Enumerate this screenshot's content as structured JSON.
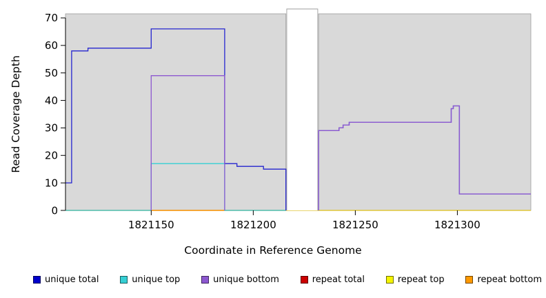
{
  "axes": {
    "ylabel": "Read Coverage Depth",
    "xlabel": "Coordinate in Reference Genome"
  },
  "chart_data": {
    "type": "line",
    "step": true,
    "title": "",
    "xlabel": "Coordinate in Reference Genome",
    "ylabel": "Read Coverage Depth",
    "xlim": [
      1821108,
      1821336
    ],
    "ylim": [
      0,
      71.5
    ],
    "x_ticks": [
      1821150,
      1821200,
      1821250,
      1821300
    ],
    "y_ticks": [
      0,
      10,
      20,
      30,
      40,
      50,
      60,
      70
    ],
    "panel_bg": "#d9d9d9",
    "panel_border": "#9c9c9c",
    "gap": {
      "x0": 1821216,
      "x1": 1821232
    },
    "series": [
      {
        "name": "repeat total",
        "color": "#cc0000",
        "points": [
          [
            1821108,
            0
          ],
          [
            1821336,
            0
          ]
        ]
      },
      {
        "name": "repeat top",
        "color": "#e2e23a",
        "points": [
          [
            1821108,
            0
          ],
          [
            1821336,
            0
          ]
        ]
      },
      {
        "name": "repeat bottom",
        "color": "#ff9900",
        "points": [
          [
            1821150,
            0
          ],
          [
            1821186,
            0
          ]
        ]
      },
      {
        "name": "unique top",
        "color": "#35cfd4",
        "points": [
          [
            1821108,
            0
          ],
          [
            1821150,
            0
          ],
          [
            1821150,
            17
          ],
          [
            1821186,
            17
          ],
          [
            1821186,
            0
          ],
          [
            1821216,
            0
          ]
        ]
      },
      {
        "name": "unique total",
        "color": "#2424cf",
        "points": [
          [
            1821108,
            10
          ],
          [
            1821111,
            10
          ],
          [
            1821111,
            58
          ],
          [
            1821119,
            58
          ],
          [
            1821119,
            59
          ],
          [
            1821150,
            59
          ],
          [
            1821150,
            66
          ],
          [
            1821186,
            66
          ],
          [
            1821186,
            17
          ],
          [
            1821192,
            17
          ],
          [
            1821192,
            16
          ],
          [
            1821205,
            16
          ],
          [
            1821205,
            15
          ],
          [
            1821216,
            15
          ],
          [
            1821216,
            0
          ],
          null,
          [
            1821232,
            0
          ],
          [
            1821232,
            29
          ],
          [
            1821242,
            29
          ],
          [
            1821242,
            30
          ],
          [
            1821244,
            30
          ],
          [
            1821244,
            31
          ],
          [
            1821247,
            31
          ],
          [
            1821247,
            32
          ],
          [
            1821297,
            32
          ],
          [
            1821297,
            37
          ],
          [
            1821298,
            37
          ],
          [
            1821298,
            38
          ],
          [
            1821301,
            38
          ],
          [
            1821301,
            6
          ],
          [
            1821336,
            6
          ]
        ]
      },
      {
        "name": "unique bottom",
        "color": "#8d58d0",
        "points": [
          [
            1821150,
            0
          ],
          [
            1821150,
            49
          ],
          [
            1821186,
            49
          ],
          [
            1821186,
            0
          ],
          null,
          [
            1821232,
            0
          ],
          [
            1821232,
            29
          ],
          [
            1821242,
            29
          ],
          [
            1821242,
            30
          ],
          [
            1821244,
            30
          ],
          [
            1821244,
            31
          ],
          [
            1821247,
            31
          ],
          [
            1821247,
            32
          ],
          [
            1821297,
            32
          ],
          [
            1821297,
            37
          ],
          [
            1821298,
            37
          ],
          [
            1821298,
            38
          ],
          [
            1821301,
            38
          ],
          [
            1821301,
            6
          ],
          [
            1821336,
            6
          ]
        ]
      }
    ]
  },
  "legend": {
    "items": [
      {
        "label": "unique total",
        "color": "#0000cc"
      },
      {
        "label": "unique top",
        "color": "#35cfd4"
      },
      {
        "label": "unique bottom",
        "color": "#8d58d0"
      },
      {
        "label": "repeat total",
        "color": "#cc0000"
      },
      {
        "label": "repeat top",
        "color": "#f4f400"
      },
      {
        "label": "repeat bottom",
        "color": "#ff9900"
      }
    ]
  }
}
